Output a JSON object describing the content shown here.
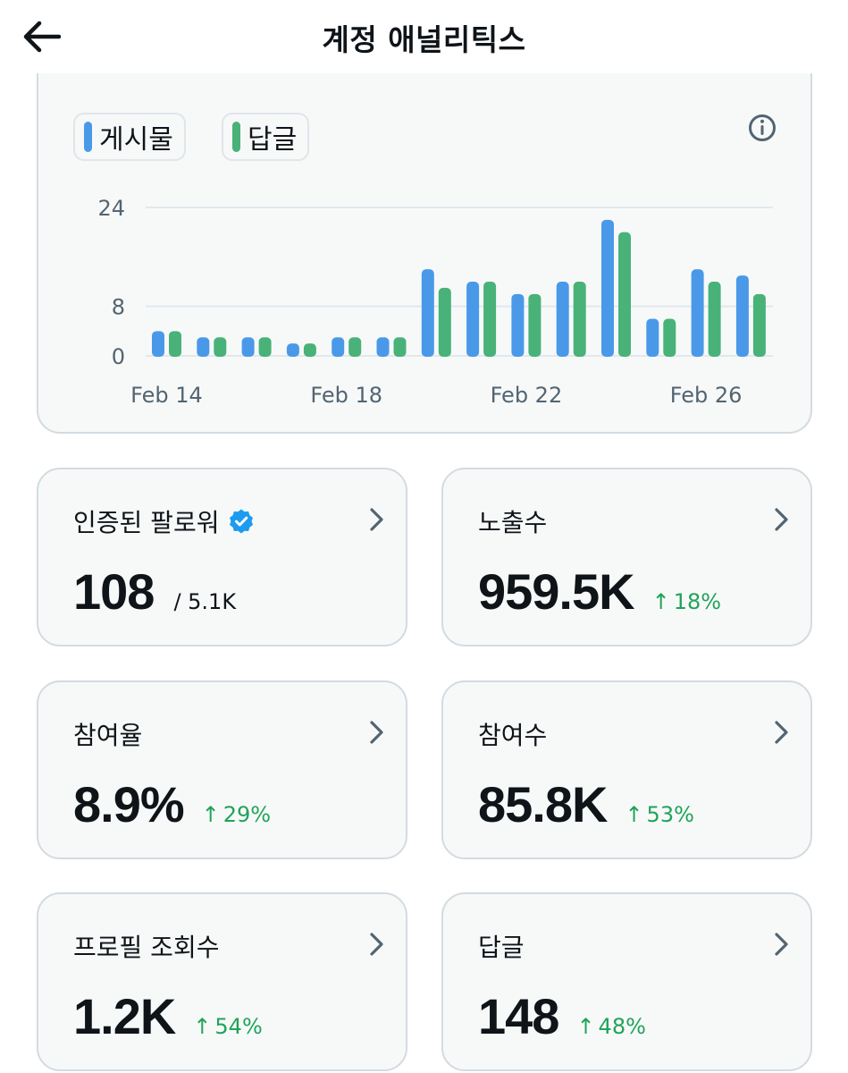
{
  "header": {
    "title": "계정 애널리틱스",
    "back_icon": "arrow-left-icon"
  },
  "chart_data": {
    "type": "bar",
    "categories": [
      "Feb 14",
      "Feb 15",
      "Feb 16",
      "Feb 17",
      "Feb 18",
      "Feb 19",
      "Feb 20",
      "Feb 21",
      "Feb 22",
      "Feb 23",
      "Feb 24",
      "Feb 25",
      "Feb 26",
      "Feb 27"
    ],
    "x_tick_labels": [
      "Feb 14",
      "Feb 18",
      "Feb 22",
      "Feb 26"
    ],
    "y_ticks": [
      "24",
      "8",
      "0"
    ],
    "ylim": [
      0,
      24
    ],
    "series": [
      {
        "name": "게시물",
        "color": "#4a99e9",
        "values": [
          4,
          3,
          3,
          2,
          3,
          3,
          14,
          12,
          10,
          12,
          22,
          6,
          14,
          13
        ]
      },
      {
        "name": "답글",
        "color": "#48b278",
        "values": [
          4,
          3,
          3,
          2,
          3,
          3,
          11,
          12,
          10,
          12,
          20,
          6,
          12,
          10
        ]
      }
    ],
    "grid": true,
    "legend_position": "top-left"
  },
  "metrics": [
    {
      "label": "인증된 팔로워",
      "value": "108",
      "sub": "/ 5.1K",
      "verified": true
    },
    {
      "label": "노출수",
      "value": "959.5K",
      "change": "18%"
    },
    {
      "label": "참여율",
      "value": "8.9%",
      "change": "29%"
    },
    {
      "label": "참여수",
      "value": "85.8K",
      "change": "53%"
    },
    {
      "label": "프로필 조회수",
      "value": "1.2K",
      "change": "54%"
    },
    {
      "label": "답글",
      "value": "148",
      "change": "48%"
    }
  ],
  "arrow_glyph": "↑",
  "colors": {
    "accent_blue": "#4a99e9",
    "accent_green": "#48b278",
    "positive": "#21a35a",
    "verified": "#1d9bf0"
  }
}
